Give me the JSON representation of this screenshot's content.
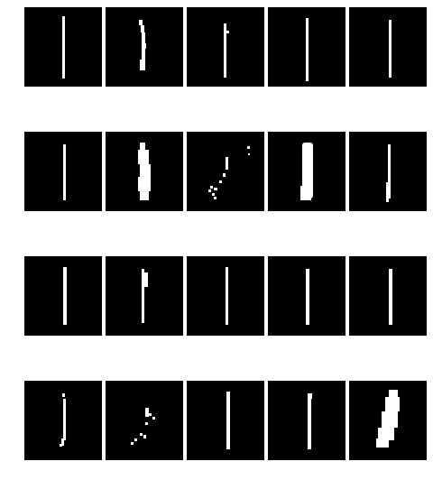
{
  "grid": {
    "rows": 4,
    "columns": 5,
    "background": "#ffffff",
    "tile_color": "#000000",
    "stroke_color": "#ffffff",
    "tiles": [
      [
        "stroke-thin",
        "stroke-jagged",
        "stroke-bracket",
        "stroke-thin",
        "stroke-thin"
      ],
      [
        "stroke-thin",
        "stroke-thick-ragged",
        "stroke-scattered-dots",
        "stroke-thick",
        "stroke-thin"
      ],
      [
        "stroke-thin",
        "stroke-bracket",
        "stroke-thin",
        "stroke-thin",
        "stroke-thin"
      ],
      [
        "stroke-thin-dotted",
        "stroke-scattered-dots",
        "stroke-thin",
        "stroke-thin",
        "stroke-blob"
      ]
    ]
  }
}
